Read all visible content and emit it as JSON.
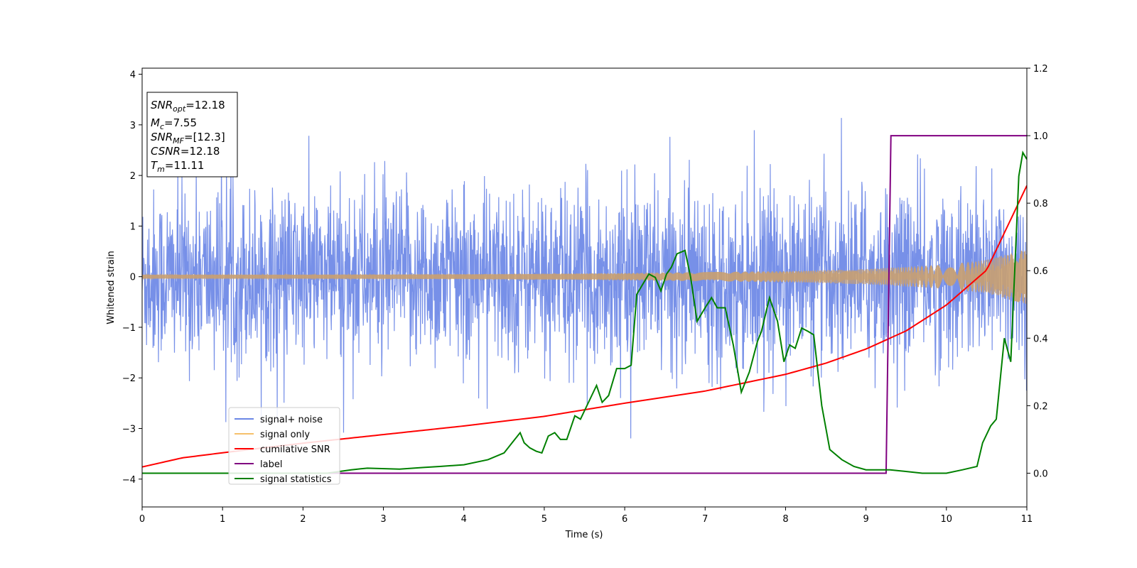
{
  "chart_data": {
    "type": "line",
    "title": "",
    "xlabel": "Time (s)",
    "ylabel": "Whitened strain",
    "xlim": [
      0,
      11
    ],
    "ylim_left": [
      -4.55,
      4.12
    ],
    "ylim_right": [
      -0.1,
      1.2
    ],
    "x_ticks": [
      "0",
      "1",
      "2",
      "3",
      "4",
      "5",
      "6",
      "7",
      "8",
      "9",
      "10",
      "11"
    ],
    "y_ticks_left": [
      "−4",
      "−3",
      "−2",
      "−1",
      "0",
      "1",
      "2",
      "3",
      "4"
    ],
    "y_ticks_right": [
      "0.0",
      "0.2",
      "0.4",
      "0.6",
      "0.8",
      "1.0",
      "1.2"
    ],
    "grid": false,
    "legend_position": "lower-left",
    "info_box": [
      {
        "italic": "SNR",
        "sub": "opt",
        "rest": "=12.18"
      },
      {
        "italic": "M",
        "sub": "c",
        "rest": "=7.55"
      },
      {
        "italic": "SNR",
        "sub": "MF",
        "rest": "=[12.3]"
      },
      {
        "italic": "CSNR",
        "sub": "",
        "rest": "=12.18"
      },
      {
        "italic": "T",
        "sub": "m",
        "rest": "=11.11"
      }
    ],
    "series": [
      {
        "name": "signal+ noise",
        "color": "#6b87e6",
        "axis": "left",
        "description_values": {
          "approx_std": 0.9,
          "approx_range": [
            -4.2,
            3.7
          ]
        }
      },
      {
        "name": "signal only",
        "color": "#f5c06b",
        "axis": "left",
        "envelope": {
          "x": [
            0,
            2,
            4,
            6,
            8,
            9,
            10,
            10.5,
            11
          ],
          "amplitude": [
            0.04,
            0.04,
            0.05,
            0.07,
            0.11,
            0.15,
            0.24,
            0.33,
            0.55
          ]
        }
      },
      {
        "name": "cumilative SNR",
        "color": "#ff0000",
        "axis": "left",
        "x": [
          0,
          0.5,
          1,
          2,
          3,
          4,
          5,
          6,
          7,
          8,
          8.5,
          9,
          9.5,
          10,
          10.5,
          11
        ],
        "y": [
          -3.76,
          -3.58,
          -3.48,
          -3.29,
          -3.12,
          -2.95,
          -2.76,
          -2.5,
          -2.26,
          -1.93,
          -1.71,
          -1.43,
          -1.07,
          -0.56,
          0.13,
          1.8
        ]
      },
      {
        "name": "label",
        "color": "#800080",
        "axis": "right",
        "x": [
          0,
          9.25,
          9.31,
          11
        ],
        "y": [
          0,
          0,
          1,
          1
        ]
      },
      {
        "name": "signal statistics",
        "color": "#008000",
        "axis": "right",
        "x": [
          0,
          2.3,
          2.6,
          2.8,
          3.2,
          3.5,
          3.7,
          4.0,
          4.3,
          4.5,
          4.6,
          4.7,
          4.75,
          4.82,
          4.9,
          4.97,
          5.05,
          5.13,
          5.2,
          5.28,
          5.38,
          5.45,
          5.55,
          5.65,
          5.72,
          5.8,
          5.9,
          6.0,
          6.08,
          6.15,
          6.3,
          6.38,
          6.45,
          6.52,
          6.58,
          6.65,
          6.75,
          6.82,
          6.9,
          7.0,
          7.08,
          7.15,
          7.25,
          7.35,
          7.45,
          7.55,
          7.65,
          7.7,
          7.8,
          7.9,
          7.98,
          8.05,
          8.12,
          8.2,
          8.28,
          8.35,
          8.45,
          8.55,
          8.7,
          8.85,
          9.0,
          9.3,
          9.7,
          10.0,
          10.2,
          10.38,
          10.45,
          10.55,
          10.62,
          10.72,
          10.8,
          10.9,
          10.95,
          11.0
        ],
        "y": [
          0,
          0,
          0.01,
          0.015,
          0.012,
          0.017,
          0.02,
          0.025,
          0.04,
          0.06,
          0.09,
          0.12,
          0.09,
          0.075,
          0.065,
          0.06,
          0.11,
          0.12,
          0.1,
          0.1,
          0.17,
          0.16,
          0.21,
          0.26,
          0.21,
          0.23,
          0.31,
          0.31,
          0.32,
          0.53,
          0.59,
          0.58,
          0.54,
          0.59,
          0.61,
          0.65,
          0.66,
          0.58,
          0.45,
          0.49,
          0.52,
          0.49,
          0.49,
          0.38,
          0.24,
          0.3,
          0.39,
          0.42,
          0.52,
          0.45,
          0.33,
          0.38,
          0.37,
          0.43,
          0.42,
          0.41,
          0.2,
          0.07,
          0.04,
          0.02,
          0.01,
          0.01,
          0.0,
          0.0,
          0.01,
          0.02,
          0.09,
          0.14,
          0.16,
          0.4,
          0.33,
          0.88,
          0.95,
          0.93
        ]
      }
    ]
  }
}
